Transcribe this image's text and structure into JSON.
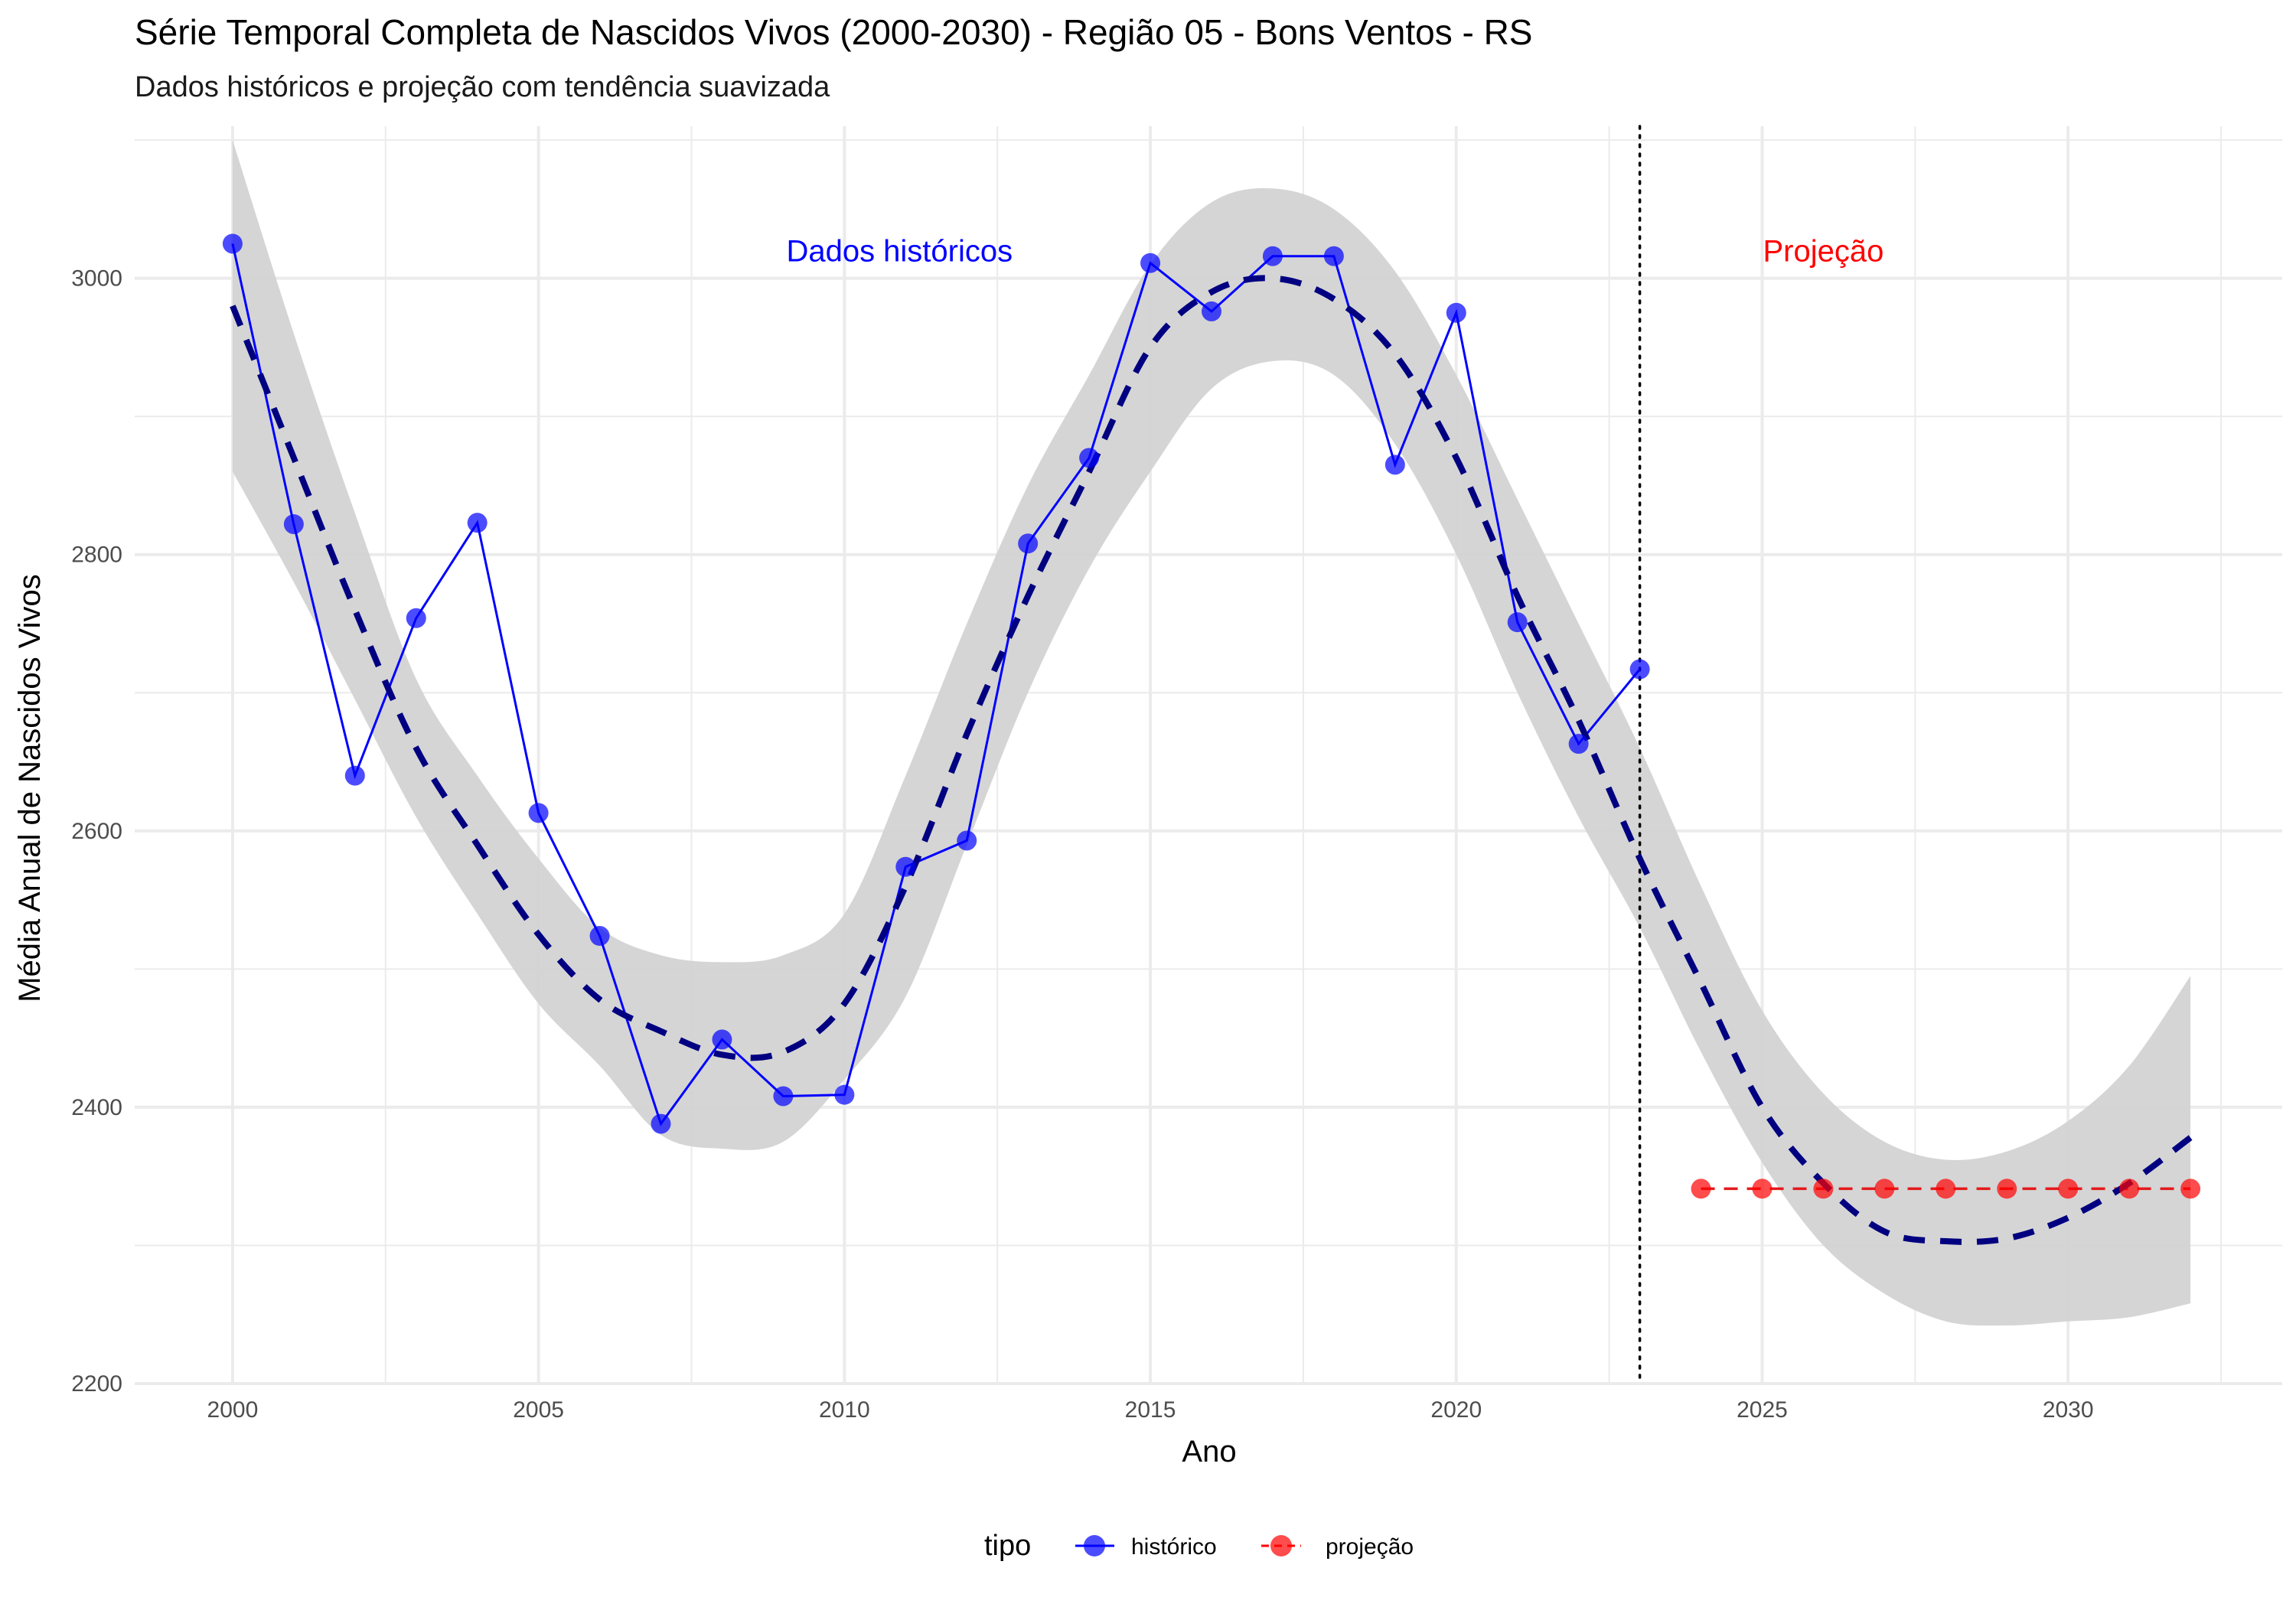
{
  "chart_data": {
    "type": "line",
    "title": "Série Temporal Completa de Nascidos Vivos (2000-2030) -  Região 05 - Bons Ventos - RS",
    "subtitle": "Dados históricos e projeção com tendência suavizada",
    "xlabel": "Ano",
    "ylabel": "Média Anual de Nascidos Vivos",
    "xlim": [
      1998.4,
      2033.5
    ],
    "ylim": [
      2200,
      3110
    ],
    "x_ticks": [
      2000,
      2005,
      2010,
      2015,
      2020,
      2025,
      2030
    ],
    "y_ticks": [
      2200,
      2400,
      2600,
      2800,
      3000
    ],
    "grid": true,
    "legend": {
      "title": "tipo",
      "position": "bottom",
      "entries": [
        "histórico",
        "projeção"
      ]
    },
    "series": [
      {
        "name": "histórico",
        "color": "#0000ff",
        "x": [
          2000,
          2001,
          2002,
          2003,
          2004,
          2005,
          2006,
          2007,
          2008,
          2009,
          2010,
          2011,
          2012,
          2013,
          2014,
          2015,
          2016,
          2017,
          2018,
          2019,
          2020,
          2021,
          2022,
          2023
        ],
        "y": [
          3025,
          2822,
          2640,
          2754,
          2823,
          2613,
          2524,
          2388,
          2449,
          2408,
          2409,
          2574,
          2593,
          2808,
          2870,
          3011,
          2976,
          3016,
          3016,
          2865,
          2975,
          2751,
          2663,
          2717
        ]
      },
      {
        "name": "projeção",
        "color": "#ff0000",
        "x": [
          2024,
          2025,
          2026,
          2027,
          2028,
          2029,
          2030,
          2031,
          2032
        ],
        "y": [
          2341,
          2341,
          2341,
          2341,
          2341,
          2341,
          2341,
          2341,
          2341
        ]
      }
    ],
    "trend": {
      "color": "#000080",
      "style": "dashed",
      "x": [
        2000,
        2001,
        2002,
        2003,
        2004,
        2005,
        2006,
        2007,
        2008,
        2009,
        2010,
        2011,
        2012,
        2013,
        2014,
        2015,
        2016,
        2017,
        2018,
        2019,
        2020,
        2021,
        2022,
        2023,
        2024,
        2025,
        2026,
        2027,
        2028,
        2029,
        2030,
        2031,
        2032
      ],
      "y": [
        2980,
        2870,
        2760,
        2660,
        2590,
        2525,
        2478,
        2455,
        2438,
        2440,
        2475,
        2560,
        2670,
        2770,
        2860,
        2950,
        2990,
        3000,
        2985,
        2945,
        2870,
        2770,
        2680,
        2580,
        2490,
        2400,
        2345,
        2310,
        2303,
        2305,
        2320,
        2345,
        2378
      ],
      "lower": [
        2860,
        2780,
        2695,
        2610,
        2540,
        2475,
        2430,
        2380,
        2370,
        2375,
        2420,
        2480,
        2590,
        2700,
        2790,
        2860,
        2920,
        2940,
        2930,
        2880,
        2800,
        2700,
        2610,
        2530,
        2440,
        2360,
        2300,
        2265,
        2245,
        2242,
        2245,
        2248,
        2258
      ],
      "upper": [
        3100,
        2960,
        2830,
        2710,
        2640,
        2580,
        2530,
        2510,
        2505,
        2510,
        2540,
        2640,
        2750,
        2850,
        2930,
        3010,
        3055,
        3065,
        3050,
        3005,
        2930,
        2840,
        2750,
        2660,
        2560,
        2470,
        2410,
        2375,
        2362,
        2368,
        2390,
        2430,
        2495
      ]
    },
    "reference_line": {
      "x": 2023,
      "style": "dotted"
    },
    "annotations": [
      {
        "text": "Dados históricos",
        "x": 2010.9,
        "y": 3020,
        "color": "#0000ff"
      },
      {
        "text": "Projeção",
        "x": 2026,
        "y": 3020,
        "color": "#ff0000"
      }
    ],
    "colors": {
      "historico": "#0000ff",
      "projecao": "#ff0000",
      "trend": "#000080",
      "band": "#d3d3d3",
      "grid": "#ebebeb"
    }
  }
}
